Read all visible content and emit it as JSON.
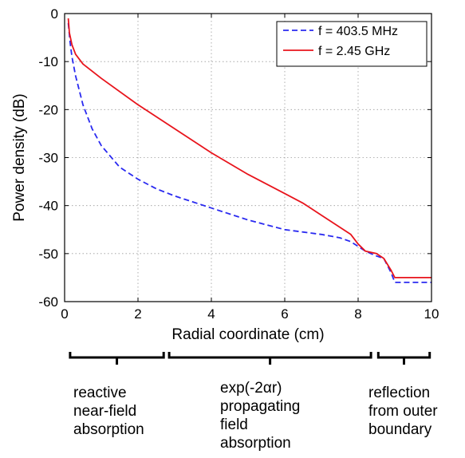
{
  "chart_data": {
    "type": "line",
    "xlabel": "Radial coordinate (cm)",
    "ylabel": "Power density (dB)",
    "xlim": [
      0,
      10
    ],
    "ylim": [
      -60,
      0
    ],
    "xticks": [
      "0",
      "2",
      "4",
      "6",
      "8",
      "10"
    ],
    "yticks": [
      "0",
      "-10",
      "-20",
      "-30",
      "-40",
      "-50",
      "-60"
    ],
    "grid": true,
    "legend_position": "top-right",
    "series": [
      {
        "name": "f = 403.5 MHz",
        "color": "#2a2af0",
        "style": "dashed",
        "x": [
          0.1,
          0.15,
          0.2,
          0.3,
          0.5,
          0.75,
          1.0,
          1.5,
          2.0,
          2.5,
          3.0,
          4.0,
          5.0,
          6.0,
          7.0,
          7.5,
          7.8,
          8.0,
          8.2,
          8.5,
          8.7,
          8.9,
          9.0,
          9.5,
          10.0
        ],
        "y": [
          -2,
          -6,
          -9,
          -13,
          -19,
          -24,
          -27.5,
          -32,
          -34.5,
          -36.5,
          -38,
          -40.5,
          -43,
          -45,
          -46,
          -46.7,
          -47.5,
          -48.5,
          -49.5,
          -50.5,
          -51,
          -54,
          -56,
          -56,
          -56
        ]
      },
      {
        "name": "f = 2.45 GHz",
        "color": "#e8141c",
        "style": "solid",
        "x": [
          0.1,
          0.13,
          0.2,
          0.3,
          0.5,
          1.0,
          2.0,
          3.0,
          4.0,
          5.0,
          6.0,
          6.5,
          7.0,
          7.5,
          7.8,
          8.0,
          8.2,
          8.5,
          8.7,
          8.9,
          9.0,
          9.5,
          10.0
        ],
        "y": [
          -1,
          -4,
          -6.5,
          -8.5,
          -10.5,
          -13.5,
          -19,
          -24,
          -29,
          -33.5,
          -37.5,
          -39.5,
          -42,
          -44.5,
          -46,
          -48,
          -49.5,
          -50,
          -51,
          -53.5,
          -55,
          -55,
          -55
        ]
      }
    ]
  },
  "annotations": [
    {
      "lines": [
        "reactive",
        "near-field",
        "absorption"
      ]
    },
    {
      "lines": [
        "exp(-2αr)",
        "propagating",
        "field",
        "absorption"
      ]
    },
    {
      "lines": [
        "reflection",
        "from outer",
        "boundary"
      ]
    }
  ]
}
